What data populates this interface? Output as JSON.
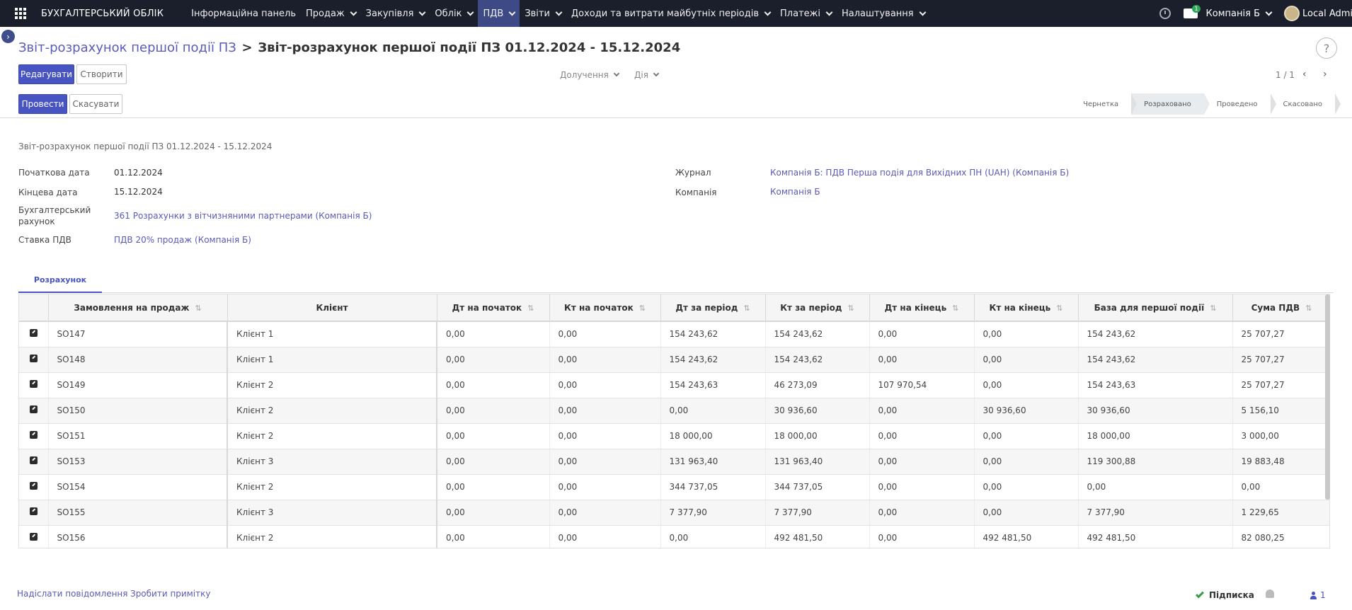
{
  "navbar": {
    "brand": "БУХГАЛТЕРСЬКИЙ ОБЛІК",
    "menu": [
      {
        "label": "Інформаційна панель",
        "has_dropdown": false
      },
      {
        "label": "Продаж",
        "has_dropdown": true
      },
      {
        "label": "Закупівля",
        "has_dropdown": true
      },
      {
        "label": "Облік",
        "has_dropdown": true
      },
      {
        "label": "ПДВ",
        "has_dropdown": true,
        "active": true
      },
      {
        "label": "Звіти",
        "has_dropdown": true
      },
      {
        "label": "Доходи та витрати майбутніх періодів",
        "has_dropdown": true
      },
      {
        "label": "Платежі",
        "has_dropdown": true
      },
      {
        "label": "Налаштування",
        "has_dropdown": true
      }
    ],
    "messages_badge": "1",
    "company": "Компанія Б",
    "user": "Local Admin"
  },
  "breadcrumb": {
    "parent": "Звіт-розрахунок першої події ПЗ",
    "separator": ">",
    "current": "Звіт-розрахунок першої події ПЗ 01.12.2024 - 15.12.2024"
  },
  "buttons": {
    "edit": "Редагувати",
    "create": "Створити",
    "post": "Провести",
    "cancel": "Скасувати",
    "help": "?"
  },
  "dropdowns": {
    "attachments": "Долучення",
    "action": "Дія"
  },
  "pager": {
    "value": "1 / 1",
    "prev": "‹",
    "next": "›"
  },
  "stages": [
    {
      "label": "Чернетка",
      "current": false
    },
    {
      "label": "Розраховано",
      "current": true
    },
    {
      "label": "Проведено",
      "current": false
    },
    {
      "label": "Скасовано",
      "current": false
    }
  ],
  "form": {
    "title": "Звіт-розрахунок першої події ПЗ 01.12.2024 - 15.12.2024",
    "start_date_label": "Початкова дата",
    "start_date": "01.12.2024",
    "end_date_label": "Кінцева дата",
    "end_date": "15.12.2024",
    "account_label_line1": "Бухгалтерський",
    "account_label_line2": "рахунок",
    "account": "361 Розрахунки з вітчизняними партнерами (Компанія Б)",
    "vat_rate_label": "Ставка ПДВ",
    "vat_rate": "ПДВ 20% продаж (Компанія Б)",
    "journal_label": "Журнал",
    "journal": "Компанія Б: ПДВ Перша подія для Вихідних ПН (UAH) (Компанія Б)",
    "company_label": "Компанія",
    "company": "Компанія Б"
  },
  "tabs": {
    "calculation": "Розрахунок"
  },
  "table": {
    "headers": {
      "order": "Замовлення на продаж",
      "client": "Клієнт",
      "dt_start": "Дт на початок",
      "kt_start": "Кт на початок",
      "dt_period": "Дт за період",
      "kt_period": "Кт за період",
      "dt_end": "Дт на кінець",
      "kt_end": "Кт на кінець",
      "base": "База для першої події",
      "vat": "Сума ПДВ"
    },
    "rows": [
      [
        "SO147",
        "Клієнт 1",
        "0,00",
        "0,00",
        "154 243,62",
        "154 243,62",
        "0,00",
        "0,00",
        "154 243,62",
        "25 707,27"
      ],
      [
        "SO148",
        "Клієнт 1",
        "0,00",
        "0,00",
        "154 243,62",
        "154 243,62",
        "0,00",
        "0,00",
        "154 243,62",
        "25 707,27"
      ],
      [
        "SO149",
        "Клієнт 2",
        "0,00",
        "0,00",
        "154 243,63",
        "46 273,09",
        "107 970,54",
        "0,00",
        "154 243,63",
        "25 707,27"
      ],
      [
        "SO150",
        "Клієнт 2",
        "0,00",
        "0,00",
        "0,00",
        "30 936,60",
        "0,00",
        "30 936,60",
        "30 936,60",
        "5 156,10"
      ],
      [
        "SO151",
        "Клієнт 2",
        "0,00",
        "0,00",
        "18 000,00",
        "18 000,00",
        "0,00",
        "0,00",
        "18 000,00",
        "3 000,00"
      ],
      [
        "SO153",
        "Клієнт 3",
        "0,00",
        "0,00",
        "131 963,40",
        "131 963,40",
        "0,00",
        "0,00",
        "119 300,88",
        "19 883,48"
      ],
      [
        "SO154",
        "Клієнт 2",
        "0,00",
        "0,00",
        "344 737,05",
        "344 737,05",
        "0,00",
        "0,00",
        "0,00",
        "0,00"
      ],
      [
        "SO155",
        "Клієнт 3",
        "0,00",
        "0,00",
        "7 377,90",
        "7 377,90",
        "0,00",
        "0,00",
        "7 377,90",
        "1 229,65"
      ],
      [
        "SO156",
        "Клієнт 2",
        "0,00",
        "0,00",
        "0,00",
        "492 481,50",
        "0,00",
        "492 481,50",
        "492 481,50",
        "82 080,25"
      ]
    ]
  },
  "chatter": {
    "send_message": "Надіслати повідомлення",
    "log_note": "Зробити примітку",
    "follow": "Підписка",
    "followers_count": "1"
  },
  "colors": {
    "navbar_bg": "#1b1e2b",
    "primary": "#4754c2",
    "link": "#5a5ab8"
  }
}
